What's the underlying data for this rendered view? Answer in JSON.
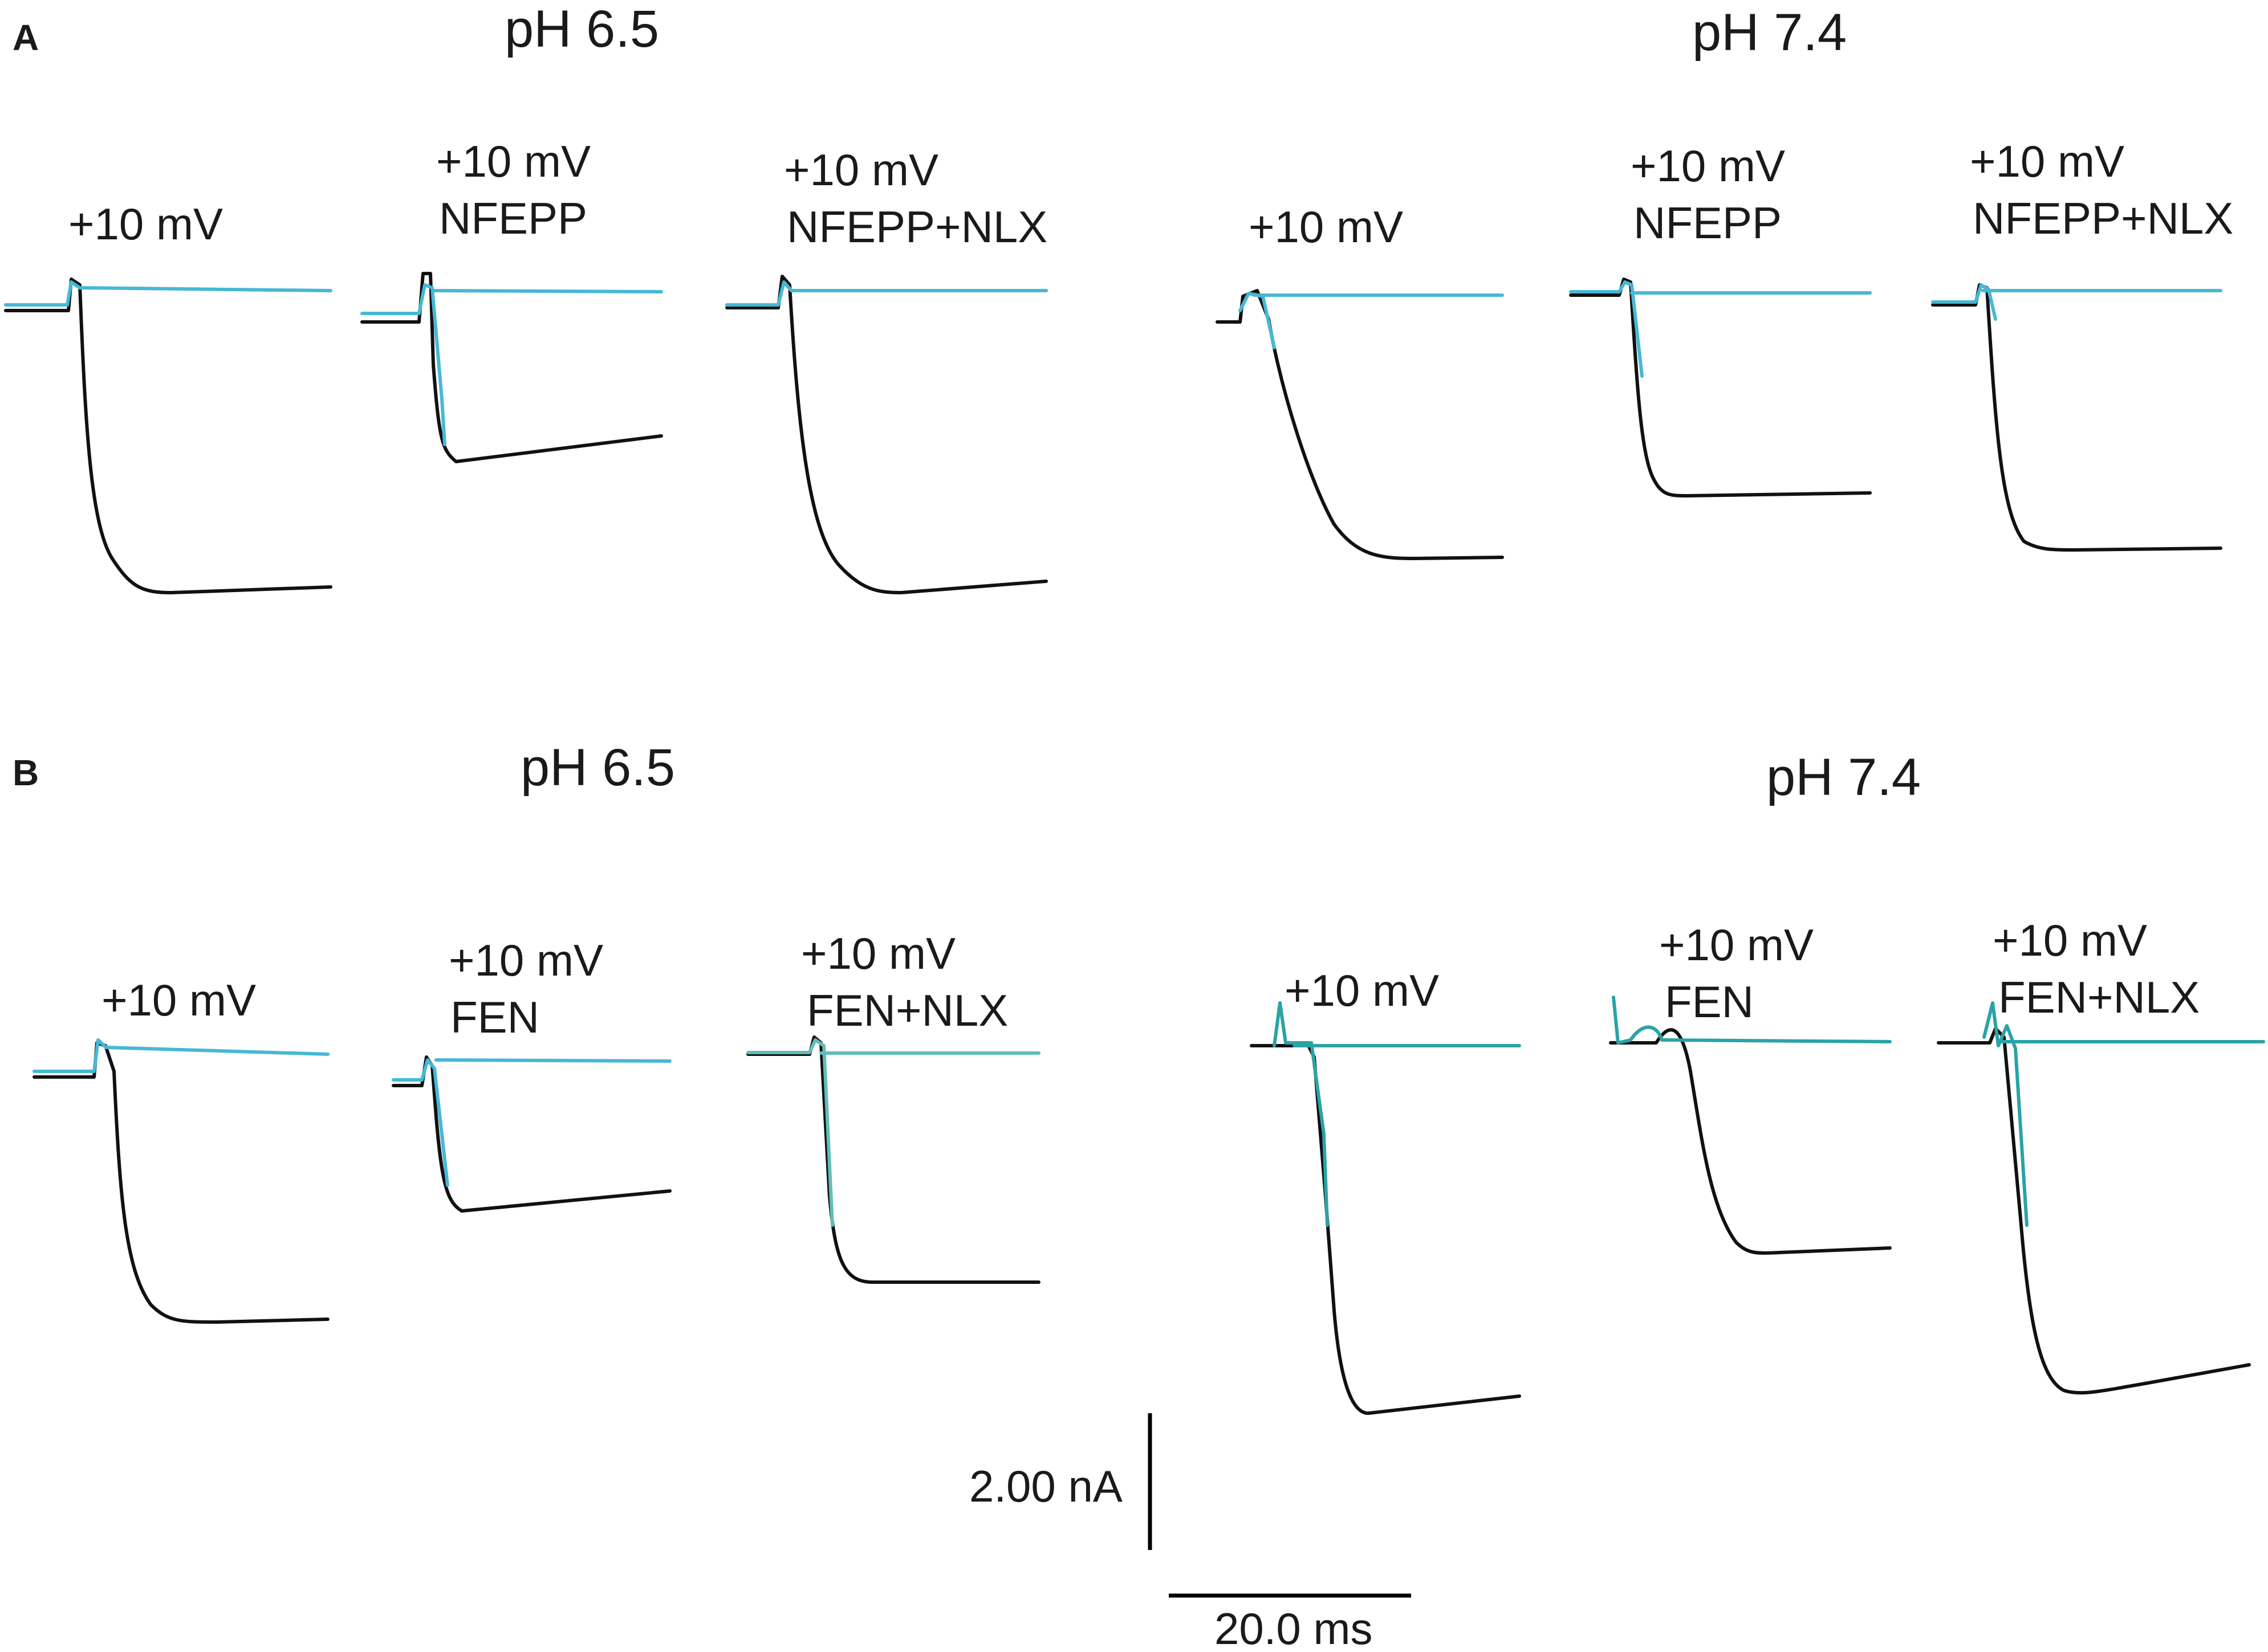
{
  "panels": {
    "A": {
      "letter": "A",
      "ph_left": "pH 6.5",
      "ph_right": "pH 7.4",
      "traces": [
        {
          "line1": "+10 mV",
          "line2": ""
        },
        {
          "line1": "+10 mV",
          "line2": "NFEPP"
        },
        {
          "line1": "+10 mV",
          "line2": "NFEPP+NLX"
        },
        {
          "line1": "+10 mV",
          "line2": ""
        },
        {
          "line1": "+10 mV",
          "line2": "NFEPP"
        },
        {
          "line1": "+10 mV",
          "line2": "NFEPP+NLX"
        }
      ]
    },
    "B": {
      "letter": "B",
      "ph_left": "pH 6.5",
      "ph_right": "pH 7.4",
      "traces": [
        {
          "line1": "+10 mV",
          "line2": ""
        },
        {
          "line1": "+10 mV",
          "line2": "FEN"
        },
        {
          "line1": "+10 mV",
          "line2": "FEN+NLX"
        },
        {
          "line1": "+10 mV",
          "line2": ""
        },
        {
          "line1": "+10 mV",
          "line2": "FEN"
        },
        {
          "line1": "+10 mV",
          "line2": "FEN+NLX"
        }
      ]
    }
  },
  "scale_bar": {
    "current_label": "2.00 nA",
    "time_label": "20.0 ms"
  },
  "colors": {
    "control_trace": "#111111",
    "drug_trace_A": "#46b8d6",
    "drug_trace_B_left": "#46b8d6",
    "drug_trace_B_right": "#2aa3a6"
  }
}
